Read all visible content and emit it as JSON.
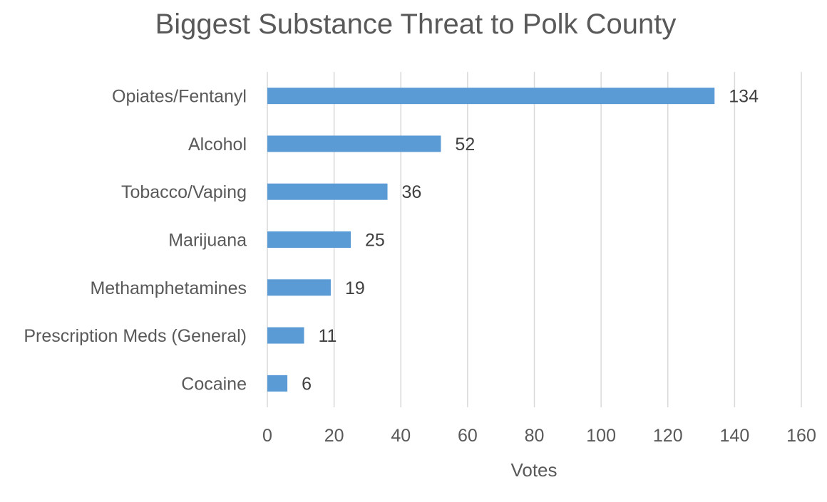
{
  "chart_data": {
    "type": "bar",
    "orientation": "horizontal",
    "title": "Biggest Substance Threat to Polk County",
    "xlabel": "Votes",
    "ylabel": "",
    "categories": [
      "Opiates/Fentanyl",
      "Alcohol",
      "Tobacco/Vaping",
      "Marijuana",
      "Methamphetamines",
      "Prescription Meds (General)",
      "Cocaine"
    ],
    "values": [
      134,
      52,
      36,
      25,
      19,
      11,
      6
    ],
    "xlim": [
      0,
      160
    ],
    "x_ticks": [
      "0",
      "20",
      "40",
      "60",
      "80",
      "100",
      "120",
      "140",
      "160"
    ],
    "grid": true,
    "legend": "none",
    "bar_color": "#5b9bd5",
    "data_labels": true
  }
}
